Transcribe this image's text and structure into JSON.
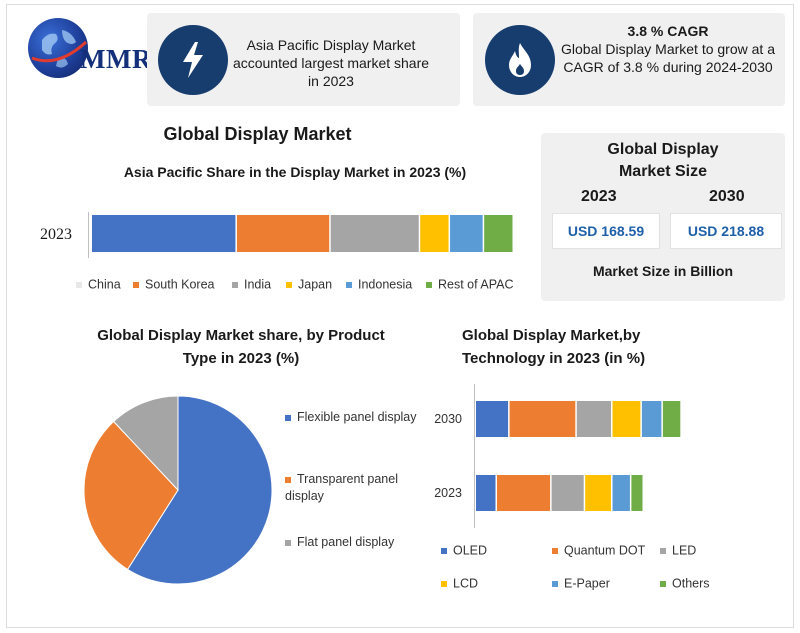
{
  "logo": {
    "text": "MMR"
  },
  "info_cards": [
    {
      "icon": "lightning-icon",
      "text": "Asia Pacific Display Market accounted largest market share in 2023"
    },
    {
      "icon": "flame-icon",
      "title": "3.8 % CAGR",
      "text": "Global Display Market to grow at a CAGR of 3.8 % during 2024-2030"
    }
  ],
  "main_title": "Global Display Market",
  "market_size": {
    "title": "Global Display Market Size",
    "years": [
      "2023",
      "2030"
    ],
    "values": [
      "USD 168.59",
      "USD 218.88"
    ],
    "unit": "Market Size in Billion"
  },
  "colors": {
    "blue": "#4472c4",
    "orange": "#ed7d31",
    "gray": "#a5a5a5",
    "yellow": "#ffc000",
    "lightblue": "#5b9bd5",
    "green": "#70ad47",
    "navy": "#173d6e"
  },
  "chart_data": [
    {
      "type": "bar",
      "orientation": "horizontal-stacked",
      "title": "Asia Pacific Share in the Display Market in 2023 (%)",
      "categories": [
        "2023"
      ],
      "series": [
        {
          "name": "China",
          "values": [
            34
          ],
          "color": "#4472c4"
        },
        {
          "name": "South Korea",
          "values": [
            22
          ],
          "color": "#ed7d31"
        },
        {
          "name": "India",
          "values": [
            21
          ],
          "color": "#a5a5a5"
        },
        {
          "name": "Japan",
          "values": [
            7
          ],
          "color": "#ffc000"
        },
        {
          "name": "Indonesia",
          "values": [
            8
          ],
          "color": "#5b9bd5"
        },
        {
          "name": "Rest of APAC",
          "values": [
            7
          ],
          "color": "#70ad47"
        }
      ],
      "legend": "bottom"
    },
    {
      "type": "pie",
      "title": "Global Display Market share, by Product Type in 2023  (%)",
      "labels": [
        "Flexible panel display",
        "Transparent panel display",
        "Flat panel display"
      ],
      "values": [
        59,
        29,
        12
      ],
      "colors": [
        "#4472c4",
        "#ed7d31",
        "#a5a5a5"
      ],
      "legend": "right"
    },
    {
      "type": "bar",
      "orientation": "horizontal-stacked",
      "title": "Global Display Market,by Technology in 2023 (in %)",
      "categories": [
        "2030",
        "2023"
      ],
      "series": [
        {
          "name": "OLED",
          "values": [
            16,
            10
          ],
          "color": "#4472c4"
        },
        {
          "name": "Quantum DOT",
          "values": [
            32,
            26
          ],
          "color": "#ed7d31"
        },
        {
          "name": "LED",
          "values": [
            17,
            16
          ],
          "color": "#a5a5a5"
        },
        {
          "name": "LCD",
          "values": [
            14,
            13
          ],
          "color": "#ffc000"
        },
        {
          "name": "E-Paper",
          "values": [
            10,
            9
          ],
          "color": "#5b9bd5"
        },
        {
          "name": "Others",
          "values": [
            9,
            6
          ],
          "color": "#70ad47"
        }
      ],
      "legend": "bottom"
    }
  ]
}
